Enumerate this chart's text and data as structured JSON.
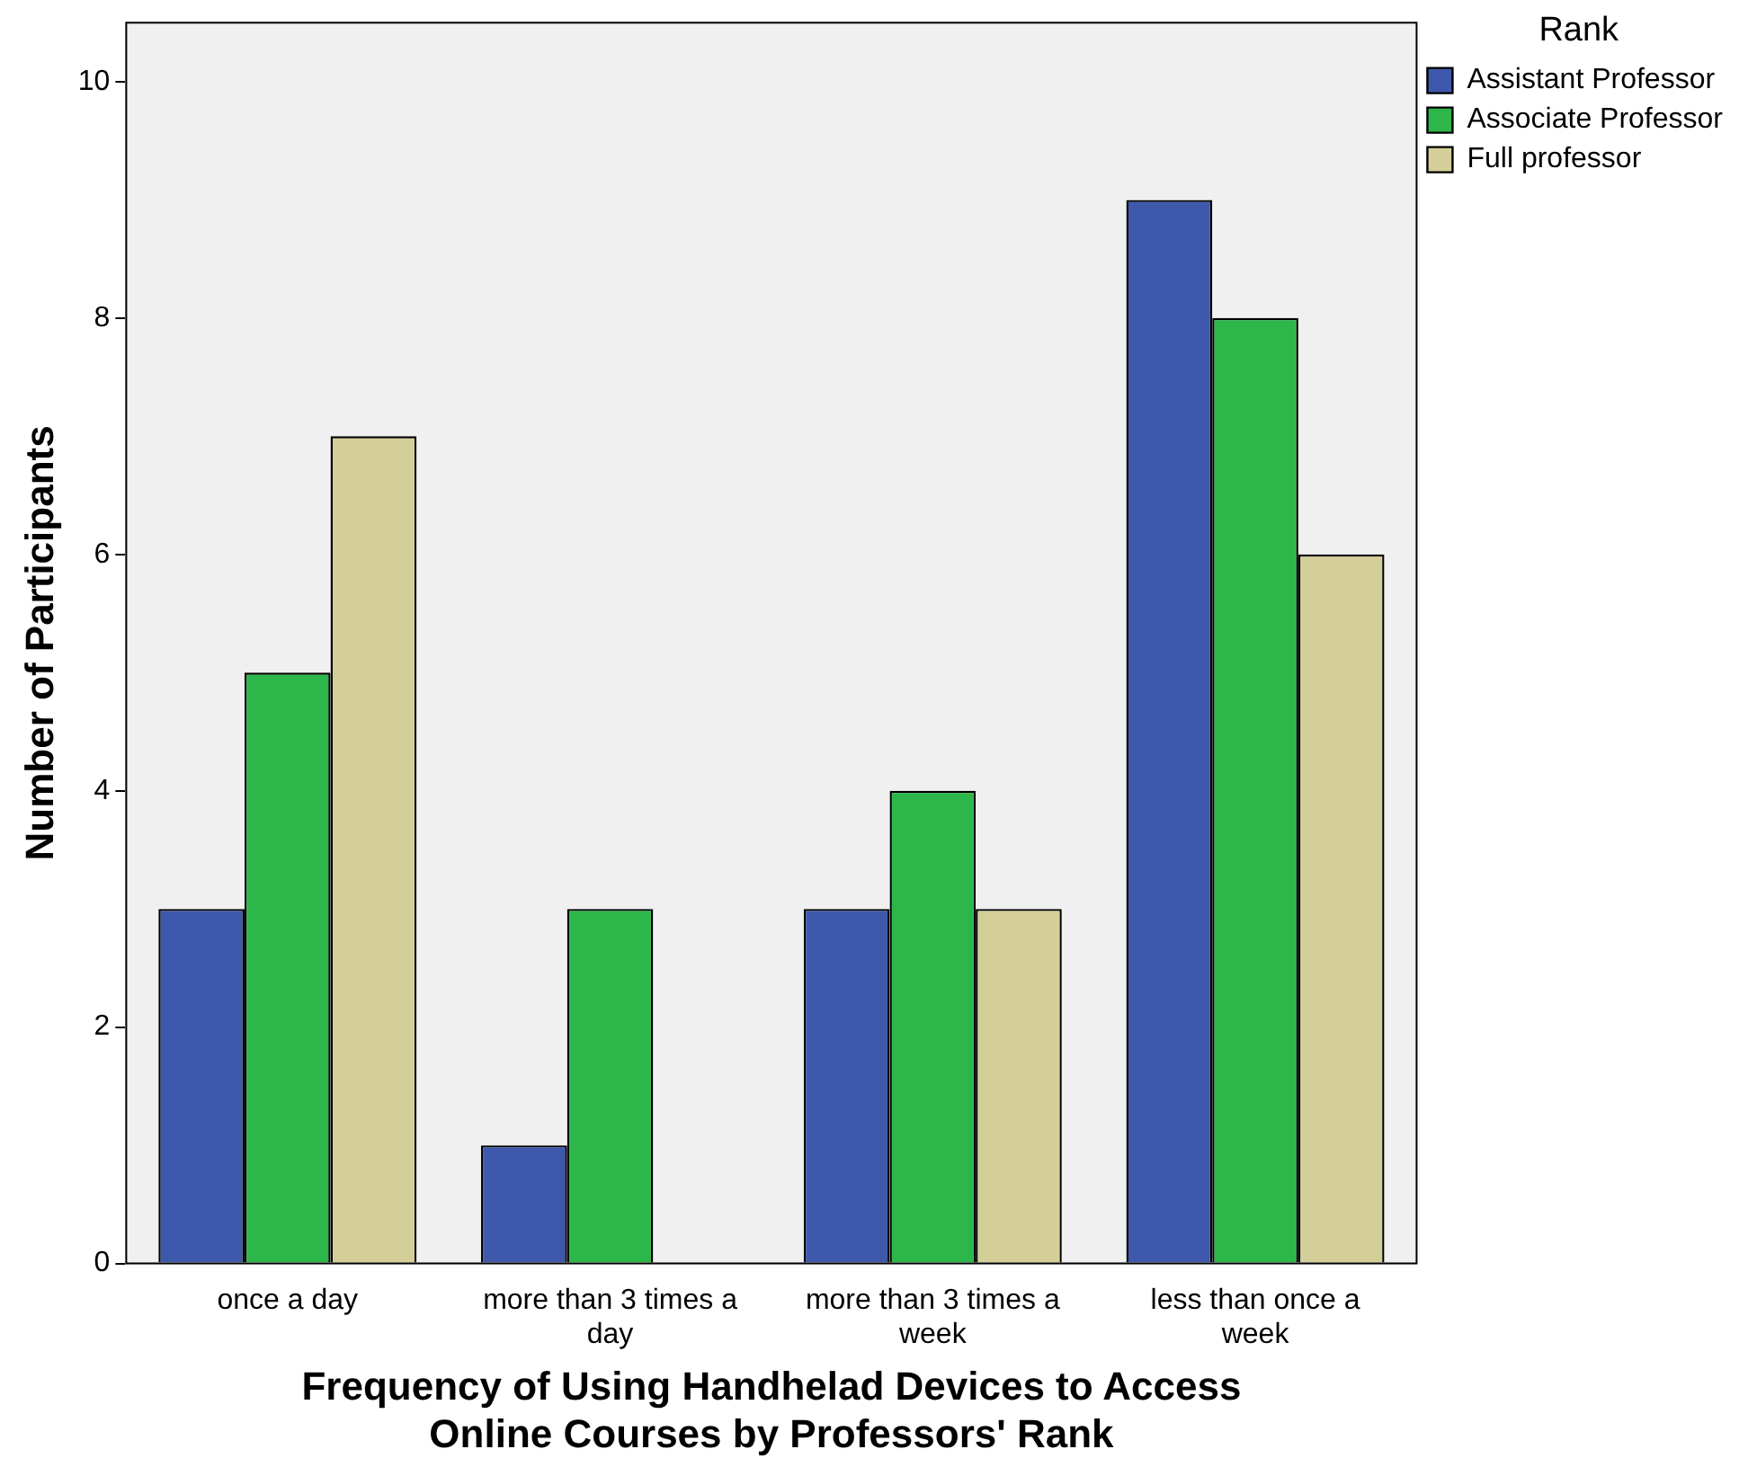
{
  "chart_data": {
    "type": "bar",
    "xlabel": "Frequency of Using Handhelad Devices to Access Online Courses by Professors' Rank",
    "ylabel": "Number of Participants",
    "legend_title": "Rank",
    "categories": [
      "once a day",
      "more than 3 times a day",
      "more than 3 times a week",
      "less than once a week"
    ],
    "series": [
      {
        "name": "Assistant Professor",
        "color": "#3e58ac",
        "values": [
          3,
          1,
          3,
          9
        ]
      },
      {
        "name": "Associate Professor",
        "color": "#2db74a",
        "values": [
          5,
          3,
          4,
          8
        ]
      },
      {
        "name": "Full professor",
        "color": "#d4cf99",
        "values": [
          7,
          0,
          3,
          6
        ]
      }
    ],
    "ylim": [
      0,
      10.5
    ],
    "yticks": [
      0,
      2,
      4,
      6,
      8,
      10
    ],
    "grid": false,
    "legend": "top right"
  }
}
